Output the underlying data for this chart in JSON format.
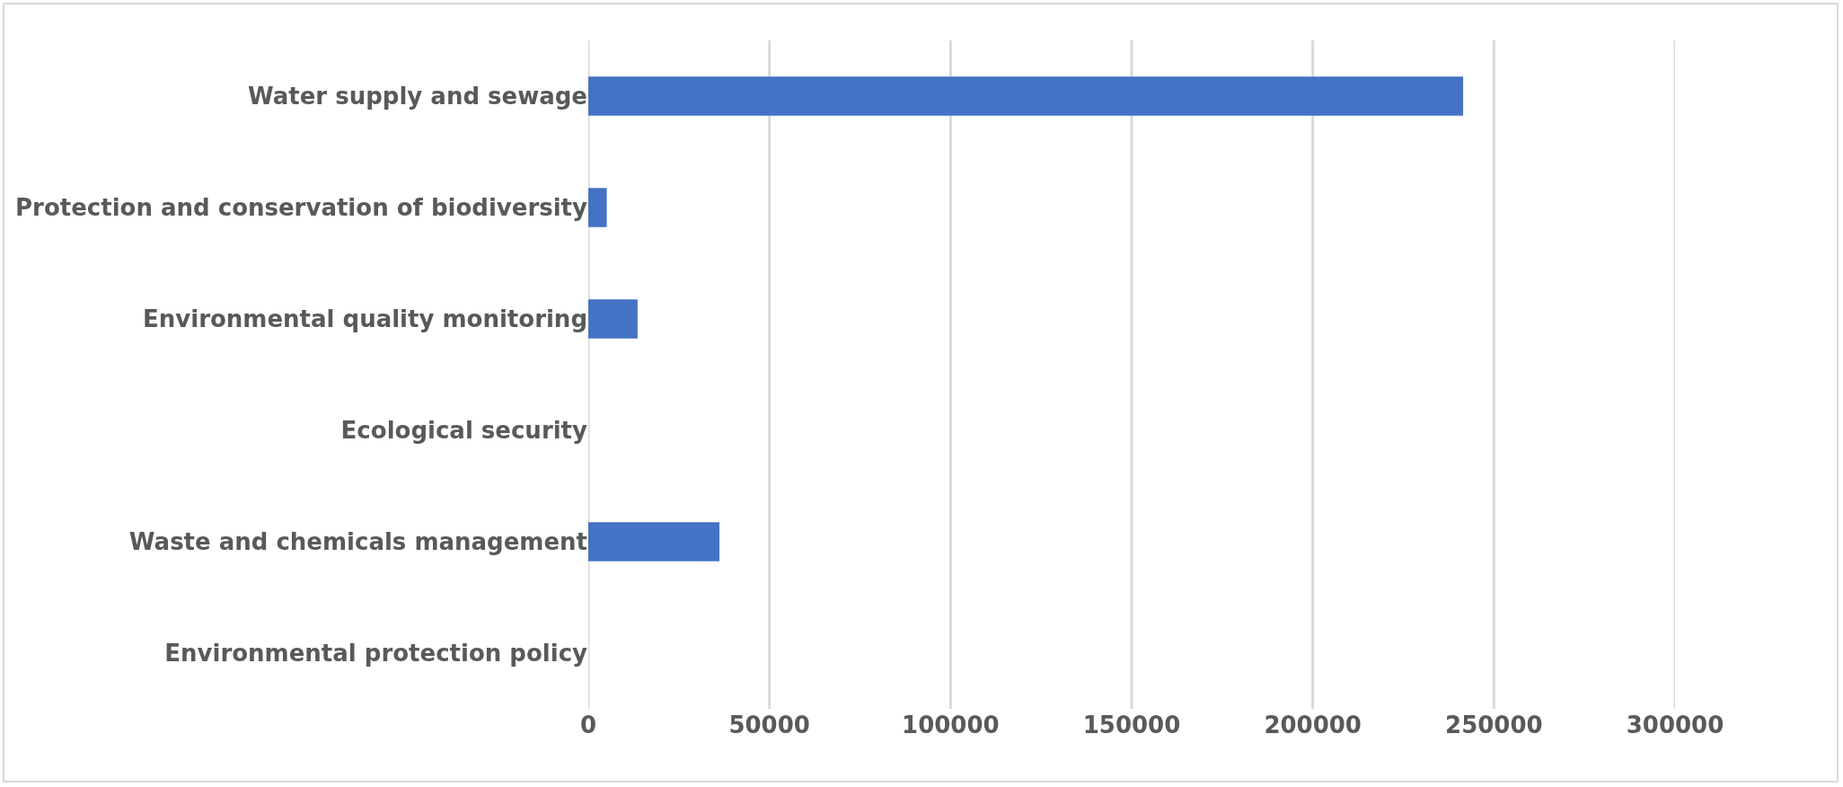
{
  "chart_data": {
    "type": "bar",
    "orientation": "horizontal",
    "categories": [
      "Water supply and sewage",
      "Protection and conservation of biodiversity",
      "Environmental quality monitoring",
      "Ecological security",
      "Waste and chemicals management",
      "Environmental protection policy"
    ],
    "values": [
      241500,
      5100,
      13600,
      0,
      36200,
      0
    ],
    "color": "#4472c4",
    "xlim": [
      0,
      300000
    ],
    "xticks": [
      0,
      50000,
      100000,
      150000,
      200000,
      250000,
      300000
    ],
    "grid": "x"
  }
}
